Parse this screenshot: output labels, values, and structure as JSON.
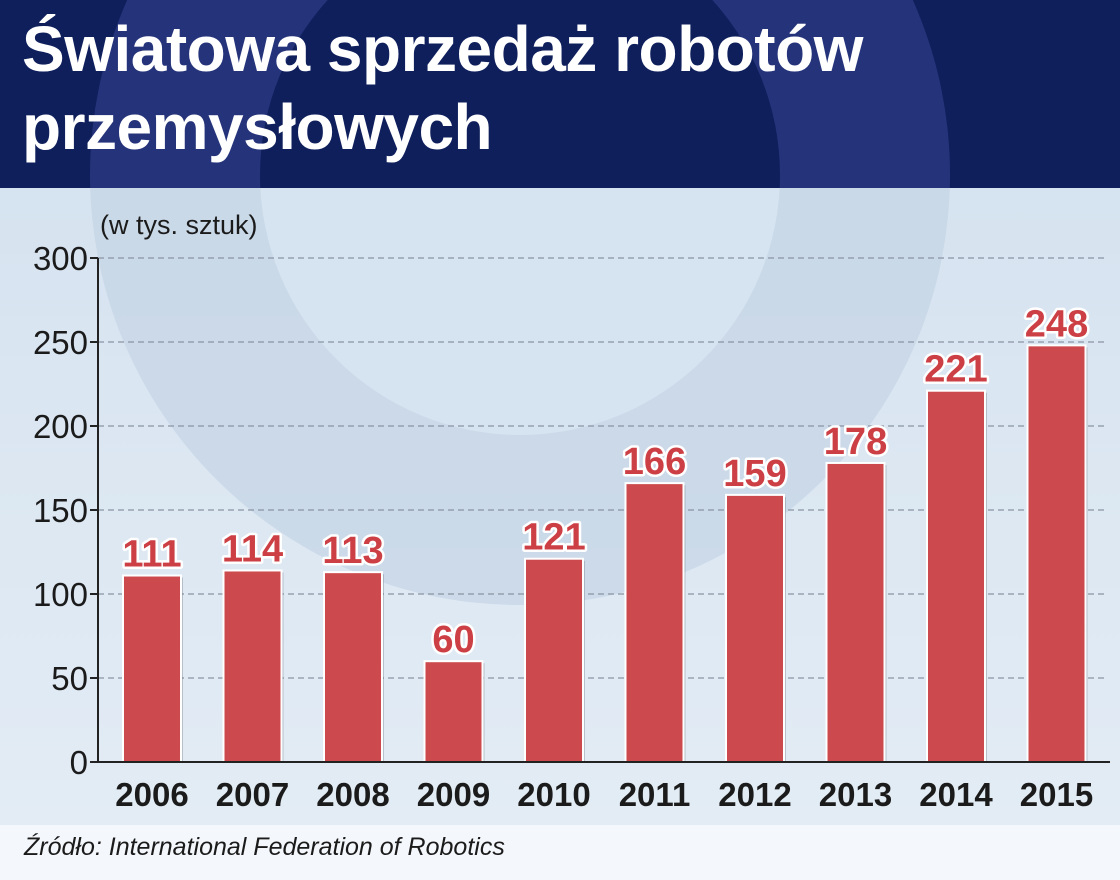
{
  "header": {
    "title_line1": "Światowa sprzedaż robotów",
    "title_line2": "przemysłowych"
  },
  "colors": {
    "header_bg": "#0e1f5c",
    "bar": "#cc4a4e",
    "label": "#cc3f44",
    "plot_bg": "#dce8f3"
  },
  "chart_data": {
    "type": "bar",
    "title": "Światowa sprzedaż robotów przemysłowych",
    "unit_label": "(w tys. sztuk)",
    "categories": [
      "2006",
      "2007",
      "2008",
      "2009",
      "2010",
      "2011",
      "2012",
      "2013",
      "2014",
      "2015"
    ],
    "values": [
      111,
      114,
      113,
      60,
      121,
      166,
      159,
      178,
      221,
      248
    ],
    "data_labels": [
      "111",
      "114",
      "113",
      "60",
      "121",
      "166",
      "159",
      "178",
      "221",
      "248"
    ],
    "ylim": [
      0,
      300
    ],
    "yticks": [
      "0",
      "50",
      "100",
      "150",
      "200",
      "250",
      "300"
    ],
    "grid": true,
    "legend": "none"
  },
  "footer": {
    "source": "Źródło: International Federation of Robotics"
  }
}
